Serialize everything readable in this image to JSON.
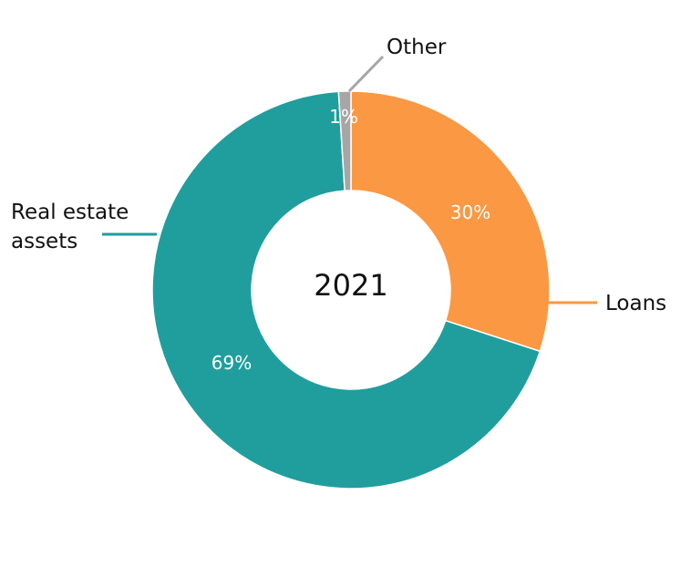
{
  "chart_data": {
    "type": "pie",
    "center_label": "2021",
    "slices": [
      {
        "name": "Loans",
        "value": 30,
        "label": "30%",
        "color": "#fb9843",
        "category_label": [
          "Loans"
        ]
      },
      {
        "name": "Real estate assets",
        "value": 69,
        "label": "69%",
        "color": "#1f9e9d",
        "category_label": [
          "Real estate",
          "assets"
        ]
      },
      {
        "name": "Other",
        "value": 1,
        "label": "1%",
        "color": "#a6a6a6",
        "category_label": [
          "Other"
        ]
      }
    ]
  }
}
